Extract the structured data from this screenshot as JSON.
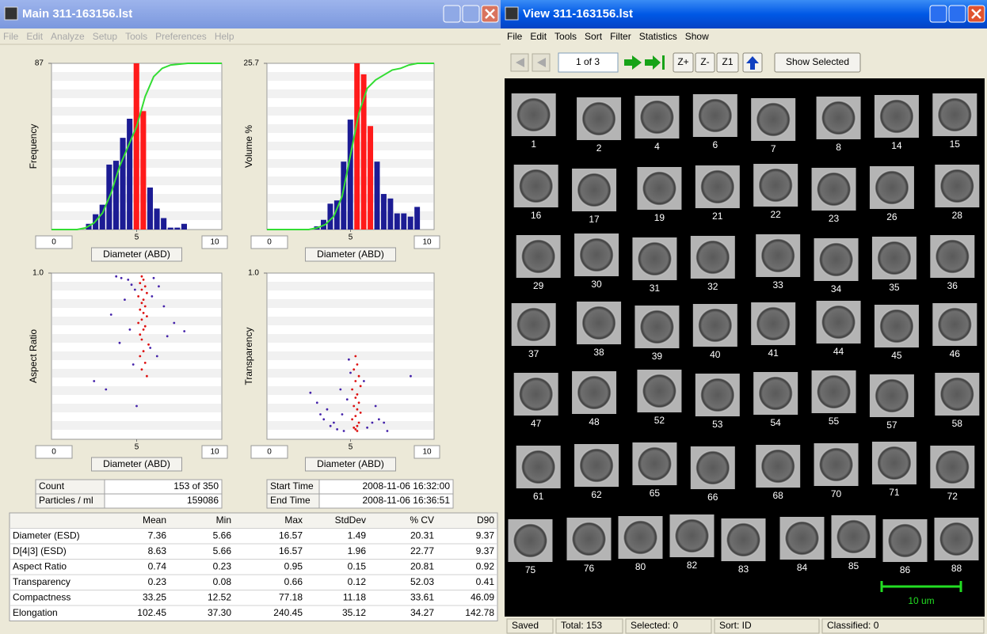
{
  "main_window": {
    "title": "Main 311-163156.lst",
    "menu": [
      "File",
      "Edit",
      "Analyze",
      "Setup",
      "Tools",
      "Preferences",
      "Help"
    ]
  },
  "charts": [
    {
      "type": "histogram",
      "ylabel": "Frequency",
      "xlabel": "Diameter (ABD)",
      "xlim": [
        0,
        10
      ],
      "xticks": [
        5
      ],
      "ylim": [
        0,
        87
      ],
      "yticks": [
        87
      ],
      "bins": [
        2.0,
        2.4,
        2.8,
        3.2,
        3.6,
        4.0,
        4.4,
        4.8,
        5.2,
        5.6,
        6.0,
        6.4,
        6.8,
        7.2,
        7.6,
        8.0
      ],
      "values": [
        3,
        8,
        13,
        34,
        36,
        48,
        58,
        87,
        62,
        22,
        11,
        6,
        1,
        1,
        3
      ],
      "colors": [
        "#1c1c94",
        "#1c1c94",
        "#1c1c94",
        "#1c1c94",
        "#1c1c94",
        "#1c1c94",
        "#1c1c94",
        "#ff1a1a",
        "#ff1a1a",
        "#1c1c94",
        "#1c1c94",
        "#1c1c94",
        "#1c1c94",
        "#1c1c94",
        "#1c1c94"
      ],
      "cumulative": {
        "color": "#33dd33",
        "y2lim": [
          0,
          100
        ],
        "x": [
          0,
          1.5,
          2.0,
          2.5,
          3.0,
          3.5,
          4.0,
          4.5,
          5.0,
          5.5,
          6.0,
          6.5,
          7.0,
          8.0,
          9.0,
          10
        ],
        "values": [
          0,
          0,
          1,
          4,
          10,
          22,
          38,
          50,
          62,
          80,
          92,
          97,
          99,
          100,
          100,
          100
        ]
      }
    },
    {
      "type": "histogram",
      "ylabel": "Volume %",
      "xlabel": "Diameter (ABD)",
      "xlim": [
        0,
        10
      ],
      "xticks": [
        5
      ],
      "ylim": [
        0,
        25.7
      ],
      "yticks": [
        25.7
      ],
      "bins": [
        2.8,
        3.2,
        3.6,
        4.0,
        4.4,
        4.8,
        5.2,
        5.6,
        6.0,
        6.4,
        6.8,
        7.2,
        7.6,
        8.0,
        8.4,
        8.8,
        9.2
      ],
      "values": [
        0.5,
        1.5,
        4,
        4.5,
        10.5,
        17,
        25.7,
        24,
        16,
        10.5,
        5.5,
        4.8,
        2.5,
        2.5,
        2,
        3.5
      ],
      "colors": [
        "#1c1c94",
        "#1c1c94",
        "#1c1c94",
        "#1c1c94",
        "#1c1c94",
        "#1c1c94",
        "#ff1a1a",
        "#ff1a1a",
        "#ff1a1a",
        "#1c1c94",
        "#1c1c94",
        "#1c1c94",
        "#1c1c94",
        "#1c1c94",
        "#1c1c94",
        "#1c1c94"
      ],
      "cumulative": {
        "color": "#33dd33",
        "y2lim": [
          0,
          100
        ],
        "x": [
          0,
          2.5,
          3.0,
          3.5,
          4.0,
          4.5,
          5.0,
          5.5,
          6.0,
          6.5,
          7.0,
          7.5,
          8.0,
          8.5,
          9.0,
          10
        ],
        "values": [
          0,
          0,
          1,
          3,
          8,
          20,
          45,
          70,
          85,
          90,
          93,
          96,
          97,
          99,
          100,
          100
        ]
      }
    },
    {
      "type": "scatter",
      "ylabel": "Aspect Ratio",
      "xlabel": "Diameter (ABD)",
      "xlim": [
        0,
        10
      ],
      "xticks": [
        5
      ],
      "ylim": [
        0,
        1
      ],
      "yticks": [
        {
          "value": 1,
          "label": "1.0"
        }
      ],
      "series": [
        {
          "color": "#dd1111",
          "x": [
            5.3,
            5.4,
            5.2,
            5.5,
            5.3,
            5.6,
            5.1,
            5.4,
            5.3,
            5.5,
            5.2,
            5.4,
            5.6,
            5.3,
            5.1,
            5.5,
            5.4,
            5.2,
            5.3,
            5.7,
            5.4,
            5.2,
            5.5,
            5.3,
            5.6
          ],
          "values": [
            0.98,
            0.96,
            0.94,
            0.92,
            0.9,
            0.88,
            0.86,
            0.84,
            0.82,
            0.8,
            0.78,
            0.76,
            0.74,
            0.72,
            0.7,
            0.68,
            0.66,
            0.63,
            0.6,
            0.57,
            0.53,
            0.5,
            0.46,
            0.42,
            0.38
          ]
        },
        {
          "color": "#4422aa",
          "x": [
            3.8,
            4.1,
            4.5,
            4.7,
            4.9,
            6.0,
            6.3,
            5.9,
            4.3,
            6.6,
            3.5,
            7.2,
            4.6,
            6.8,
            4.0,
            5.8,
            2.5,
            7.8,
            4.8,
            6.2,
            3.2,
            5.0
          ],
          "values": [
            0.98,
            0.97,
            0.96,
            0.93,
            0.9,
            0.97,
            0.92,
            0.86,
            0.84,
            0.8,
            0.75,
            0.7,
            0.66,
            0.62,
            0.58,
            0.55,
            0.35,
            0.65,
            0.45,
            0.5,
            0.3,
            0.2
          ]
        }
      ]
    },
    {
      "type": "scatter",
      "ylabel": "Transparency",
      "xlabel": "Diameter (ABD)",
      "xlim": [
        0,
        10
      ],
      "xticks": [
        5
      ],
      "ylim": [
        0,
        1
      ],
      "yticks": [
        {
          "value": 1,
          "label": "1.0"
        }
      ],
      "series": [
        {
          "color": "#dd1111",
          "x": [
            5.3,
            5.4,
            5.2,
            5.5,
            5.3,
            5.6,
            5.1,
            5.4,
            5.3,
            5.5,
            5.2,
            5.4,
            5.6,
            5.3,
            5.1,
            5.5,
            5.4,
            5.2,
            5.3,
            5.4
          ],
          "values": [
            0.5,
            0.45,
            0.42,
            0.38,
            0.35,
            0.32,
            0.3,
            0.27,
            0.25,
            0.22,
            0.2,
            0.18,
            0.16,
            0.14,
            0.12,
            0.1,
            0.08,
            0.07,
            0.06,
            0.05
          ]
        },
        {
          "color": "#4422aa",
          "x": [
            2.6,
            3.0,
            3.4,
            3.8,
            4.2,
            4.5,
            4.8,
            5.0,
            6.0,
            6.3,
            6.7,
            7.2,
            3.6,
            4.4,
            4.0,
            4.9,
            6.5,
            5.8,
            8.6,
            3.2,
            4.6,
            7.0
          ],
          "values": [
            0.28,
            0.22,
            0.12,
            0.08,
            0.06,
            0.15,
            0.24,
            0.4,
            0.07,
            0.1,
            0.12,
            0.05,
            0.18,
            0.3,
            0.1,
            0.48,
            0.2,
            0.35,
            0.38,
            0.15,
            0.05,
            0.1
          ]
        }
      ]
    }
  ],
  "summary": {
    "rows": [
      [
        "Count",
        "153 of 350"
      ],
      [
        "Particles / ml",
        "159086"
      ]
    ]
  },
  "times": {
    "rows": [
      [
        "Start Time",
        "2008-11-06 16:32:00"
      ],
      [
        "End Time",
        "2008-11-06 16:36:51"
      ]
    ]
  },
  "stats_table": {
    "columns": [
      "Mean",
      "Min",
      "Max",
      "StdDev",
      "% CV",
      "D90"
    ],
    "rows": [
      {
        "label": "Diameter (ESD)",
        "cells": [
          "7.36",
          "5.66",
          "16.57",
          "1.49",
          "20.31",
          "9.37"
        ]
      },
      {
        "label": "D[4|3] (ESD)",
        "cells": [
          "8.63",
          "5.66",
          "16.57",
          "1.96",
          "22.77",
          "9.37"
        ]
      },
      {
        "label": "Aspect Ratio",
        "cells": [
          "0.74",
          "0.23",
          "0.95",
          "0.15",
          "20.81",
          "0.92"
        ]
      },
      {
        "label": "Transparency",
        "cells": [
          "0.23",
          "0.08",
          "0.66",
          "0.12",
          "52.03",
          "0.41"
        ]
      },
      {
        "label": "Compactness",
        "cells": [
          "33.25",
          "12.52",
          "77.18",
          "11.18",
          "33.61",
          "46.09"
        ]
      },
      {
        "label": "Elongation",
        "cells": [
          "102.45",
          "37.30",
          "240.45",
          "35.12",
          "34.27",
          "142.78"
        ]
      }
    ]
  },
  "view_window": {
    "title": "View 311-163156.lst",
    "menu": [
      "File",
      "Edit",
      "Tools",
      "Sort",
      "Filter",
      "Statistics",
      "Show"
    ],
    "toolbar": {
      "page": "1 of 3",
      "buttons": [
        "Z+",
        "Z-",
        "Z1",
        "Show Selected"
      ]
    },
    "particles": [
      [
        1,
        2,
        4,
        6,
        7,
        8,
        14,
        15
      ],
      [
        16,
        17,
        19,
        21,
        22,
        23,
        26,
        28
      ],
      [
        29,
        30,
        31,
        32,
        33,
        34,
        35,
        36
      ],
      [
        37,
        38,
        39,
        40,
        41,
        44,
        45,
        46
      ],
      [
        47,
        48,
        52,
        53,
        54,
        55,
        57,
        58
      ],
      [
        61,
        62,
        65,
        66,
        68,
        70,
        71,
        72
      ],
      [
        75,
        76,
        80,
        82,
        83,
        84,
        85,
        86,
        88
      ]
    ],
    "scale_bar": "10 um",
    "status": [
      "Saved",
      "Total: 153",
      "Selected: 0",
      "Sort: ID",
      "Classified: 0"
    ]
  }
}
